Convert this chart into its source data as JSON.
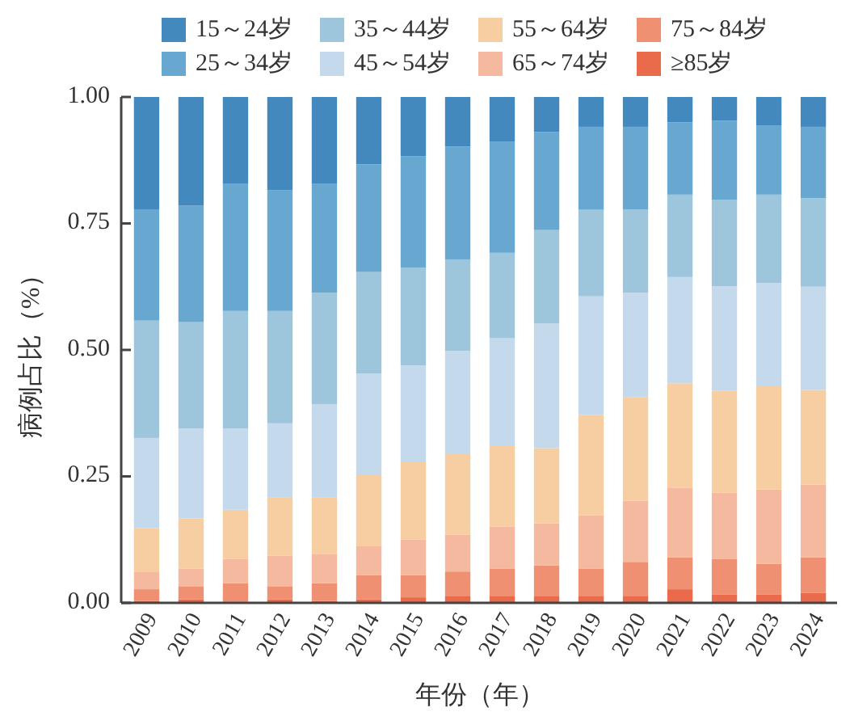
{
  "chart_data": {
    "type": "bar",
    "stacked": true,
    "xlabel": "年份（年）",
    "ylabel": "病例占比（%）",
    "categories": [
      "2009",
      "2010",
      "2011",
      "2012",
      "2013",
      "2014",
      "2015",
      "2016",
      "2017",
      "2018",
      "2019",
      "2020",
      "2021",
      "2022",
      "2023",
      "2024"
    ],
    "ylim": [
      0,
      1
    ],
    "yticks": [
      {
        "value": 0,
        "label": "0.00"
      },
      {
        "value": 0.25,
        "label": "0.25"
      },
      {
        "value": 0.5,
        "label": "0.50"
      },
      {
        "value": 0.75,
        "label": "0.75"
      },
      {
        "value": 1,
        "label": "1.00"
      }
    ],
    "grid": false,
    "legend": "top",
    "series": [
      {
        "name": "≥85岁",
        "color": "#ea6a4c",
        "values": [
          0.004,
          0.007,
          0.002,
          0.007,
          0.004,
          0.007,
          0.011,
          0.014,
          0.014,
          0.014,
          0.014,
          0.014,
          0.027,
          0.017,
          0.017,
          0.02
        ]
      },
      {
        "name": "75～84岁",
        "color": "#f09072",
        "values": [
          0.023,
          0.026,
          0.037,
          0.026,
          0.035,
          0.048,
          0.044,
          0.048,
          0.054,
          0.06,
          0.054,
          0.067,
          0.063,
          0.07,
          0.06,
          0.07
        ]
      },
      {
        "name": "65～74岁",
        "color": "#f5b9a0",
        "values": [
          0.035,
          0.035,
          0.048,
          0.06,
          0.058,
          0.058,
          0.07,
          0.073,
          0.083,
          0.083,
          0.105,
          0.121,
          0.137,
          0.131,
          0.147,
          0.144
        ]
      },
      {
        "name": "55～64岁",
        "color": "#f7cda2",
        "values": [
          0.086,
          0.099,
          0.097,
          0.116,
          0.112,
          0.141,
          0.153,
          0.159,
          0.159,
          0.149,
          0.198,
          0.204,
          0.207,
          0.201,
          0.204,
          0.187
        ]
      },
      {
        "name": "45～54岁",
        "color": "#c5d9ec",
        "values": [
          0.178,
          0.178,
          0.161,
          0.146,
          0.184,
          0.199,
          0.191,
          0.204,
          0.213,
          0.246,
          0.235,
          0.207,
          0.21,
          0.207,
          0.204,
          0.204
        ]
      },
      {
        "name": "35～44岁",
        "color": "#9dc6dc",
        "values": [
          0.232,
          0.21,
          0.232,
          0.222,
          0.22,
          0.201,
          0.194,
          0.181,
          0.169,
          0.185,
          0.171,
          0.165,
          0.163,
          0.171,
          0.175,
          0.175
        ]
      },
      {
        "name": "25～34岁",
        "color": "#68a7cf",
        "values": [
          0.22,
          0.23,
          0.252,
          0.239,
          0.216,
          0.213,
          0.22,
          0.223,
          0.22,
          0.194,
          0.164,
          0.163,
          0.143,
          0.156,
          0.137,
          0.141
        ]
      },
      {
        "name": "15～24岁",
        "color": "#4389be",
        "values": [
          0.222,
          0.215,
          0.171,
          0.184,
          0.171,
          0.133,
          0.117,
          0.098,
          0.088,
          0.069,
          0.059,
          0.059,
          0.05,
          0.047,
          0.056,
          0.059
        ]
      }
    ]
  }
}
